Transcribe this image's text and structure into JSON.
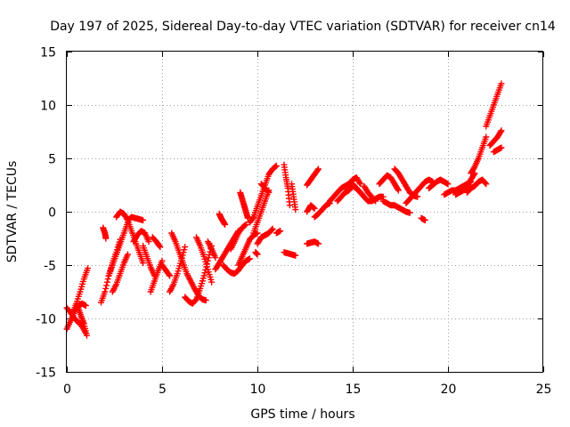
{
  "chart_data": {
    "type": "scatter",
    "title": "Day 197 of 2025, Sidereal Day-to-day VTEC variation (SDTVAR) for receiver cn14",
    "xlabel": "GPS time / hours",
    "ylabel": "SDTVAR / TECUs",
    "xlim": [
      0,
      25
    ],
    "ylim": [
      -15,
      15
    ],
    "xticks": [
      0,
      5,
      10,
      15,
      20,
      25
    ],
    "yticks": [
      -15,
      -10,
      -5,
      0,
      5,
      10,
      15
    ],
    "xtick_labels": [
      "0",
      "5",
      "10",
      "15",
      "20",
      "25"
    ],
    "ytick_labels": [
      "-15",
      "-10",
      "-5",
      "0",
      "5",
      "10",
      "15"
    ],
    "grid": true,
    "marker": "+",
    "series_color": "#ff0000",
    "tracks": [
      {
        "x": [
          0.0,
          0.25,
          0.5,
          0.75,
          1.0
        ],
        "y": [
          -9.0,
          -9.6,
          -10.2,
          -10.6,
          -11.4
        ]
      },
      {
        "x": [
          0.0,
          0.2,
          0.4,
          0.6,
          0.8,
          1.0
        ],
        "y": [
          -11.0,
          -10.2,
          -9.4,
          -8.8,
          -8.6,
          -8.8
        ]
      },
      {
        "x": [
          0.3,
          0.5,
          0.7,
          0.9,
          1.1
        ],
        "y": [
          -9.5,
          -8.6,
          -7.5,
          -6.3,
          -5.3
        ]
      },
      {
        "x": [
          0.6,
          0.75,
          0.9,
          1.05
        ],
        "y": [
          -9.0,
          -9.8,
          -10.5,
          -11.6
        ]
      },
      {
        "x": [
          1.8,
          2.0,
          2.2,
          2.4,
          2.6,
          2.8
        ],
        "y": [
          -8.5,
          -7.5,
          -6.0,
          -4.8,
          -3.8,
          -2.6
        ]
      },
      {
        "x": [
          1.9,
          2.0,
          2.05
        ],
        "y": [
          -1.5,
          -2.0,
          -2.5
        ]
      },
      {
        "x": [
          2.2,
          2.4,
          2.6,
          2.8,
          3.0,
          3.2
        ],
        "y": [
          -6.0,
          -5.0,
          -4.0,
          -3.0,
          -2.0,
          -1.0
        ]
      },
      {
        "x": [
          2.4,
          2.6,
          2.8,
          3.0,
          3.2
        ],
        "y": [
          -7.5,
          -6.8,
          -5.8,
          -4.8,
          -4.0
        ]
      },
      {
        "x": [
          2.6,
          2.8,
          3.0,
          3.2,
          3.4,
          3.6,
          3.8,
          4.0
        ],
        "y": [
          -0.5,
          0.0,
          -0.2,
          -0.8,
          -1.8,
          -2.8,
          -3.8,
          -4.8
        ]
      },
      {
        "x": [
          3.2,
          3.4,
          3.6,
          3.8,
          4.0
        ],
        "y": [
          -0.8,
          -0.5,
          -0.6,
          -0.7,
          -0.8
        ]
      },
      {
        "x": [
          3.5,
          3.7,
          3.9,
          4.1,
          4.3
        ],
        "y": [
          -2.8,
          -2.2,
          -1.8,
          -2.0,
          -2.8
        ]
      },
      {
        "x": [
          4.0,
          4.2,
          4.4,
          4.6
        ],
        "y": [
          -3.2,
          -4.2,
          -5.2,
          -6.0
        ]
      },
      {
        "x": [
          4.4,
          4.6,
          4.8,
          5.0
        ],
        "y": [
          -7.5,
          -6.5,
          -5.5,
          -4.6
        ]
      },
      {
        "x": [
          4.5,
          4.7,
          4.9
        ],
        "y": [
          -2.4,
          -2.8,
          -3.3
        ]
      },
      {
        "x": [
          5.0,
          5.2,
          5.4
        ],
        "y": [
          -5.0,
          -5.5,
          -6.0
        ]
      },
      {
        "x": [
          5.4,
          5.6,
          5.8,
          6.0,
          6.2
        ],
        "y": [
          -7.5,
          -6.8,
          -5.8,
          -4.6,
          -3.3
        ]
      },
      {
        "x": [
          5.5,
          5.7,
          5.9,
          6.1,
          6.3,
          6.5,
          6.7,
          6.9,
          7.1,
          7.3
        ],
        "y": [
          -2.0,
          -2.8,
          -3.8,
          -4.8,
          -5.8,
          -6.5,
          -7.2,
          -7.8,
          -8.2,
          -8.3
        ]
      },
      {
        "x": [
          6.2,
          6.4,
          6.6,
          6.8,
          7.0,
          7.2,
          7.4,
          7.6
        ],
        "y": [
          -8.0,
          -8.4,
          -8.6,
          -8.2,
          -7.2,
          -6.0,
          -4.6,
          -3.2
        ]
      },
      {
        "x": [
          6.8,
          7.0,
          7.2,
          7.4,
          7.6
        ],
        "y": [
          -2.4,
          -3.2,
          -4.2,
          -5.4,
          -6.6
        ]
      },
      {
        "x": [
          7.4,
          7.6,
          7.8
        ],
        "y": [
          -2.8,
          -3.5,
          -4.3
        ]
      },
      {
        "x": [
          7.8,
          8.0,
          8.2,
          8.4,
          8.6,
          8.8,
          9.0
        ],
        "y": [
          -5.4,
          -4.8,
          -4.2,
          -3.6,
          -3.0,
          -2.4,
          -1.8
        ]
      },
      {
        "x": [
          8.2,
          8.4,
          8.6,
          8.8,
          9.0,
          9.2,
          9.4,
          9.6
        ],
        "y": [
          -5.0,
          -5.4,
          -5.7,
          -5.8,
          -5.5,
          -5.0,
          -4.6,
          -4.4
        ]
      },
      {
        "x": [
          8.0,
          8.1,
          8.2,
          8.3
        ],
        "y": [
          -0.2,
          -0.6,
          -0.9,
          -1.2
        ]
      },
      {
        "x": [
          8.6,
          8.8,
          9.0,
          9.2,
          9.4
        ],
        "y": [
          -3.5,
          -2.8,
          -2.0,
          -1.5,
          -1.2
        ]
      },
      {
        "x": [
          9.1,
          9.2,
          9.3,
          9.4,
          9.5
        ],
        "y": [
          1.8,
          1.2,
          0.6,
          0.0,
          -0.6
        ]
      },
      {
        "x": [
          9.0,
          9.2,
          9.4,
          9.6,
          9.8,
          10.0
        ],
        "y": [
          -5.0,
          -4.2,
          -3.4,
          -2.6,
          -2.2,
          -2.0
        ]
      },
      {
        "x": [
          9.6,
          9.8,
          10.0,
          10.2,
          10.4,
          10.6,
          10.8,
          11.0
        ],
        "y": [
          -1.0,
          -0.5,
          0.5,
          1.5,
          2.5,
          3.5,
          4.0,
          4.3
        ]
      },
      {
        "x": [
          9.8,
          10.0,
          10.2,
          10.4,
          10.6
        ],
        "y": [
          -2.0,
          -1.0,
          0.0,
          1.0,
          2.0
        ]
      },
      {
        "x": [
          10.0,
          10.2,
          10.4,
          10.6,
          10.8
        ],
        "y": [
          -3.0,
          -2.4,
          -2.2,
          -2.0,
          -1.6
        ]
      },
      {
        "x": [
          10.2,
          10.4,
          10.6
        ],
        "y": [
          2.6,
          2.2,
          1.8
        ]
      },
      {
        "x": [
          9.9,
          10.0
        ],
        "y": [
          -3.8,
          -4.0
        ]
      },
      {
        "x": [
          11.0,
          11.2
        ],
        "y": [
          -2.0,
          -1.8
        ]
      },
      {
        "x": [
          11.4,
          11.5,
          11.6,
          11.7
        ],
        "y": [
          4.4,
          3.2,
          2.2,
          0.6
        ]
      },
      {
        "x": [
          11.4,
          11.6,
          11.8,
          12.0
        ],
        "y": [
          -3.8,
          -3.9,
          -4.0,
          -4.1
        ]
      },
      {
        "x": [
          11.8,
          11.9,
          12.0
        ],
        "y": [
          2.6,
          1.4,
          0.2
        ]
      },
      {
        "x": [
          12.6,
          12.8,
          13.0,
          13.2
        ],
        "y": [
          2.5,
          3.0,
          3.5,
          4.0
        ]
      },
      {
        "x": [
          12.6,
          12.8,
          13.0
        ],
        "y": [
          0.0,
          0.6,
          0.3
        ]
      },
      {
        "x": [
          12.6,
          12.8,
          13.0,
          13.2
        ],
        "y": [
          -3.0,
          -2.9,
          -2.8,
          -3.0
        ]
      },
      {
        "x": [
          13.0,
          13.2,
          13.4,
          13.6,
          13.8
        ],
        "y": [
          -0.5,
          -0.2,
          0.2,
          0.6,
          0.8
        ]
      },
      {
        "x": [
          13.8,
          14.0,
          14.2,
          14.4,
          14.6,
          14.8,
          15.0,
          15.2,
          15.4
        ],
        "y": [
          1.0,
          1.4,
          1.8,
          2.2,
          2.4,
          2.6,
          3.0,
          3.2,
          2.6
        ]
      },
      {
        "x": [
          14.2,
          14.4,
          14.6,
          14.8,
          15.0,
          15.2,
          15.4,
          15.6
        ],
        "y": [
          1.0,
          1.4,
          1.8,
          2.0,
          2.4,
          2.2,
          1.8,
          1.4
        ]
      },
      {
        "x": [
          15.0,
          15.2,
          15.4,
          15.6,
          15.8,
          16.0,
          16.2,
          16.4,
          16.6
        ],
        "y": [
          2.6,
          2.2,
          1.8,
          1.4,
          1.0,
          1.0,
          1.2,
          1.4,
          1.4
        ]
      },
      {
        "x": [
          15.6,
          15.8,
          16.0,
          16.2
        ],
        "y": [
          2.4,
          1.8,
          1.4,
          1.0
        ]
      },
      {
        "x": [
          16.4,
          16.6,
          16.8,
          17.0,
          17.2,
          17.4
        ],
        "y": [
          2.6,
          3.0,
          3.4,
          3.2,
          2.6,
          2.0
        ]
      },
      {
        "x": [
          16.6,
          16.8,
          17.0,
          17.2,
          17.4,
          17.6,
          17.8,
          18.0
        ],
        "y": [
          1.0,
          0.8,
          0.6,
          0.6,
          0.4,
          0.2,
          0.0,
          -0.1
        ]
      },
      {
        "x": [
          17.2,
          17.4,
          17.6,
          17.8,
          18.0,
          18.2,
          18.4
        ],
        "y": [
          4.0,
          3.6,
          3.0,
          2.4,
          1.8,
          1.5,
          1.4
        ]
      },
      {
        "x": [
          17.8,
          18.0,
          18.2,
          18.4,
          18.6,
          18.8,
          19.0,
          19.2
        ],
        "y": [
          0.8,
          1.2,
          1.6,
          2.0,
          2.4,
          2.8,
          3.0,
          2.8
        ]
      },
      {
        "x": [
          18.6,
          18.8
        ],
        "y": [
          -0.6,
          -0.8
        ]
      },
      {
        "x": [
          19.0,
          19.2,
          19.4,
          19.6,
          19.8,
          20.0
        ],
        "y": [
          2.2,
          2.5,
          2.8,
          3.0,
          2.8,
          2.6
        ]
      },
      {
        "x": [
          19.8,
          20.0,
          20.2,
          20.4,
          20.6,
          20.8,
          21.0,
          21.2
        ],
        "y": [
          1.6,
          1.8,
          2.0,
          2.0,
          2.2,
          2.4,
          2.6,
          2.8
        ]
      },
      {
        "x": [
          20.4,
          20.6,
          20.8,
          21.0,
          21.2,
          21.4
        ],
        "y": [
          1.6,
          1.8,
          2.0,
          2.4,
          3.0,
          3.6
        ]
      },
      {
        "x": [
          21.0,
          21.2,
          21.4,
          21.6,
          21.8,
          22.0
        ],
        "y": [
          1.8,
          2.2,
          2.4,
          2.8,
          3.0,
          2.6
        ]
      },
      {
        "x": [
          21.2,
          21.4,
          21.6,
          21.8,
          22.0
        ],
        "y": [
          3.6,
          4.2,
          5.0,
          6.0,
          7.0
        ]
      },
      {
        "x": [
          22.0,
          22.2,
          22.4,
          22.6,
          22.8
        ],
        "y": [
          8.0,
          9.0,
          10.0,
          11.0,
          12.0
        ]
      },
      {
        "x": [
          22.2,
          22.4,
          22.6,
          22.8
        ],
        "y": [
          6.2,
          6.6,
          7.0,
          7.6
        ]
      },
      {
        "x": [
          22.4,
          22.6,
          22.8
        ],
        "y": [
          5.6,
          5.8,
          6.0
        ]
      }
    ]
  }
}
